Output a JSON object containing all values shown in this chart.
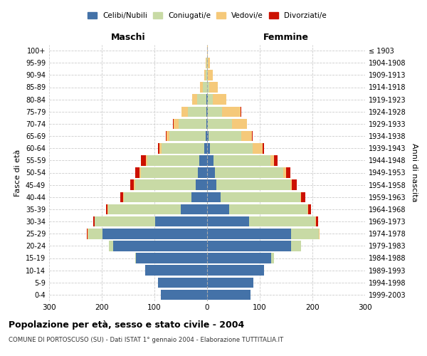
{
  "age_groups": [
    "0-4",
    "5-9",
    "10-14",
    "15-19",
    "20-24",
    "25-29",
    "30-34",
    "35-39",
    "40-44",
    "45-49",
    "50-54",
    "55-59",
    "60-64",
    "65-69",
    "70-74",
    "75-79",
    "80-84",
    "85-89",
    "90-94",
    "95-99",
    "100+"
  ],
  "birth_years": [
    "1999-2003",
    "1994-1998",
    "1989-1993",
    "1984-1988",
    "1979-1983",
    "1974-1978",
    "1969-1973",
    "1964-1968",
    "1959-1963",
    "1954-1958",
    "1949-1953",
    "1944-1948",
    "1939-1943",
    "1934-1938",
    "1929-1933",
    "1924-1928",
    "1919-1923",
    "1914-1918",
    "1909-1913",
    "1904-1908",
    "≤ 1903"
  ],
  "males": {
    "celibi": [
      88,
      93,
      118,
      135,
      178,
      198,
      98,
      50,
      30,
      22,
      18,
      15,
      5,
      3,
      2,
      1,
      1,
      0,
      0,
      0,
      0
    ],
    "coniugati": [
      0,
      0,
      0,
      2,
      8,
      28,
      115,
      138,
      128,
      115,
      108,
      98,
      82,
      68,
      52,
      35,
      18,
      8,
      3,
      1,
      0
    ],
    "vedovi": [
      0,
      0,
      0,
      0,
      0,
      1,
      1,
      1,
      1,
      2,
      3,
      3,
      4,
      6,
      10,
      12,
      10,
      6,
      3,
      2,
      0
    ],
    "divorziati": [
      0,
      0,
      0,
      0,
      1,
      1,
      2,
      3,
      6,
      7,
      7,
      9,
      2,
      2,
      1,
      1,
      0,
      0,
      0,
      0,
      0
    ]
  },
  "females": {
    "nubili": [
      82,
      88,
      108,
      122,
      160,
      160,
      80,
      42,
      25,
      18,
      15,
      12,
      5,
      3,
      2,
      1,
      1,
      0,
      0,
      0,
      0
    ],
    "coniugate": [
      0,
      0,
      0,
      5,
      18,
      52,
      125,
      148,
      152,
      140,
      130,
      108,
      82,
      62,
      45,
      27,
      10,
      4,
      2,
      1,
      0
    ],
    "vedove": [
      0,
      0,
      0,
      0,
      0,
      1,
      2,
      2,
      2,
      3,
      5,
      7,
      18,
      20,
      28,
      36,
      26,
      16,
      9,
      5,
      1
    ],
    "divorziate": [
      0,
      0,
      0,
      0,
      1,
      1,
      4,
      5,
      7,
      9,
      8,
      7,
      3,
      2,
      1,
      1,
      0,
      0,
      0,
      0,
      0
    ]
  },
  "colors": {
    "celibi": "#4472a8",
    "coniugati": "#c8daa5",
    "vedovi": "#f5c97a",
    "divorziati": "#cc1100"
  },
  "title": "Popolazione per età, sesso e stato civile - 2004",
  "subtitle": "COMUNE DI PORTOSCUSO (SU) - Dati ISTAT 1° gennaio 2004 - Elaborazione TUTTITALIA.IT",
  "xlabel_left": "Maschi",
  "xlabel_right": "Femmine",
  "ylabel_left": "Fasce di età",
  "ylabel_right": "Anni di nascita",
  "xlim": 300,
  "legend_labels": [
    "Celibi/Nubili",
    "Coniugati/e",
    "Vedovi/e",
    "Divorziati/e"
  ],
  "background_color": "#ffffff"
}
